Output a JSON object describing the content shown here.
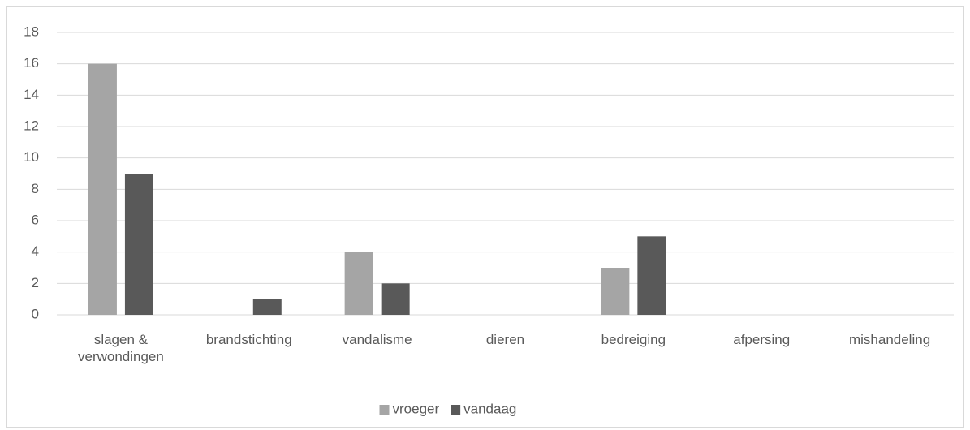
{
  "chart_data": {
    "type": "bar",
    "categories": [
      "slagen & verwondingen",
      "brandstichting",
      "vandalisme",
      "dieren",
      "bedreiging",
      "afpersing",
      "mishandeling"
    ],
    "series": [
      {
        "name": "vroeger",
        "color": "#a5a5a5",
        "values": [
          16,
          0,
          4,
          0,
          3,
          0,
          0
        ]
      },
      {
        "name": "vandaag",
        "color": "#595959",
        "values": [
          9,
          1,
          2,
          0,
          5,
          0,
          0
        ]
      }
    ],
    "ylim": [
      0,
      18
    ],
    "yticks": [
      0,
      2,
      4,
      6,
      8,
      10,
      12,
      14,
      16,
      18
    ],
    "grid": true,
    "legend": "bottom"
  }
}
